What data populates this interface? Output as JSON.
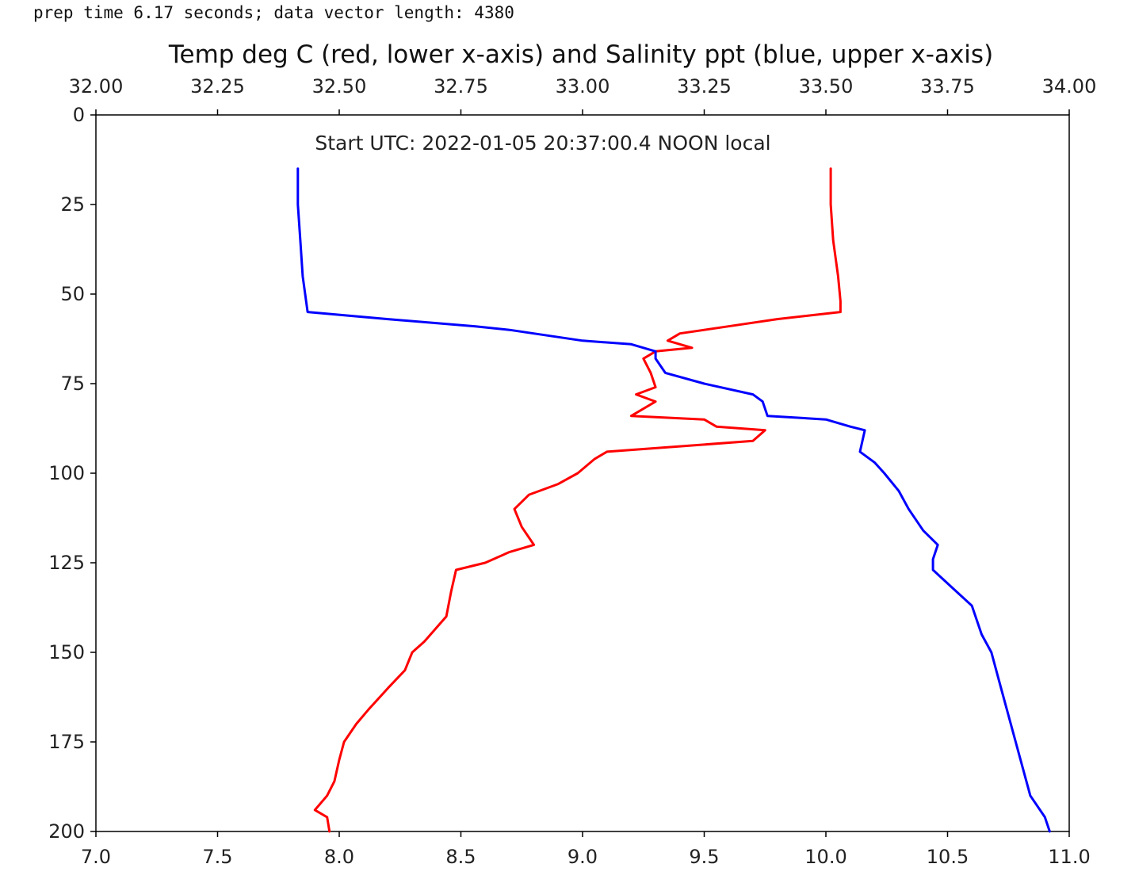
{
  "console": {
    "output_line": "prep time 6.17 seconds; data vector length: 4380"
  },
  "chart_data": {
    "type": "line",
    "title": "Temp deg C (red, lower x-axis) and Salinity ppt (blue, upper x-axis)",
    "annotation": "Start UTC: 2022-01-05 20:37:00.4 NOON local",
    "grid": false,
    "y_axis": {
      "label": "",
      "inverted": true,
      "lim": [
        0,
        200
      ],
      "ticks": [
        0,
        25,
        50,
        75,
        100,
        125,
        150,
        175,
        200
      ],
      "tick_labels": [
        "0",
        "25",
        "50",
        "75",
        "100",
        "125",
        "150",
        "175",
        "200"
      ]
    },
    "x_bottom": {
      "label": "",
      "lim": [
        7.0,
        11.0
      ],
      "ticks": [
        7.0,
        7.5,
        8.0,
        8.5,
        9.0,
        9.5,
        10.0,
        10.5,
        11.0
      ],
      "tick_labels": [
        "7.0",
        "7.5",
        "8.0",
        "8.5",
        "9.0",
        "9.5",
        "10.0",
        "10.5",
        "11.0"
      ]
    },
    "x_top": {
      "label": "",
      "lim": [
        32.0,
        34.0
      ],
      "ticks": [
        32.0,
        32.25,
        32.5,
        32.75,
        33.0,
        33.25,
        33.5,
        33.75,
        34.0
      ],
      "tick_labels": [
        "32.00",
        "32.25",
        "32.50",
        "32.75",
        "33.00",
        "33.25",
        "33.50",
        "33.75",
        "34.00"
      ]
    },
    "series": [
      {
        "axis": "bottom",
        "color": "#ff0000",
        "points": [
          [
            10.02,
            15
          ],
          [
            10.02,
            25
          ],
          [
            10.03,
            35
          ],
          [
            10.05,
            45
          ],
          [
            10.06,
            52
          ],
          [
            10.06,
            55
          ],
          [
            9.8,
            57
          ],
          [
            9.6,
            59
          ],
          [
            9.4,
            61
          ],
          [
            9.35,
            63
          ],
          [
            9.45,
            65
          ],
          [
            9.3,
            66
          ],
          [
            9.25,
            68
          ],
          [
            9.28,
            72
          ],
          [
            9.3,
            76
          ],
          [
            9.22,
            78
          ],
          [
            9.3,
            80
          ],
          [
            9.2,
            84
          ],
          [
            9.5,
            85
          ],
          [
            9.55,
            87
          ],
          [
            9.75,
            88
          ],
          [
            9.7,
            91
          ],
          [
            9.3,
            93
          ],
          [
            9.1,
            94
          ],
          [
            9.05,
            96
          ],
          [
            8.98,
            100
          ],
          [
            8.9,
            103
          ],
          [
            8.78,
            106
          ],
          [
            8.72,
            110
          ],
          [
            8.75,
            115
          ],
          [
            8.8,
            120
          ],
          [
            8.7,
            122
          ],
          [
            8.6,
            125
          ],
          [
            8.48,
            127
          ],
          [
            8.46,
            133
          ],
          [
            8.44,
            140
          ],
          [
            8.35,
            147
          ],
          [
            8.3,
            150
          ],
          [
            8.27,
            155
          ],
          [
            8.2,
            160
          ],
          [
            8.12,
            166
          ],
          [
            8.07,
            170
          ],
          [
            8.02,
            175
          ],
          [
            8.0,
            180
          ],
          [
            7.98,
            186
          ],
          [
            7.95,
            190
          ],
          [
            7.9,
            194
          ],
          [
            7.95,
            196
          ],
          [
            7.96,
            200
          ]
        ]
      },
      {
        "axis": "top",
        "color": "#0000ff",
        "points": [
          [
            32.415,
            15
          ],
          [
            32.415,
            25
          ],
          [
            32.42,
            35
          ],
          [
            32.425,
            45
          ],
          [
            32.43,
            50
          ],
          [
            32.435,
            55
          ],
          [
            32.6,
            57
          ],
          [
            32.78,
            59
          ],
          [
            32.85,
            60
          ],
          [
            33.0,
            63
          ],
          [
            33.1,
            64
          ],
          [
            33.15,
            66
          ],
          [
            33.15,
            68
          ],
          [
            33.17,
            72
          ],
          [
            33.25,
            75
          ],
          [
            33.35,
            78
          ],
          [
            33.37,
            80
          ],
          [
            33.38,
            84
          ],
          [
            33.5,
            85
          ],
          [
            33.55,
            87
          ],
          [
            33.58,
            88
          ],
          [
            33.57,
            94
          ],
          [
            33.6,
            97
          ],
          [
            33.62,
            100
          ],
          [
            33.65,
            105
          ],
          [
            33.67,
            110
          ],
          [
            33.7,
            116
          ],
          [
            33.73,
            120
          ],
          [
            33.72,
            124
          ],
          [
            33.72,
            127
          ],
          [
            33.76,
            132
          ],
          [
            33.8,
            137
          ],
          [
            33.82,
            145
          ],
          [
            33.84,
            150
          ],
          [
            33.86,
            160
          ],
          [
            33.88,
            170
          ],
          [
            33.9,
            180
          ],
          [
            33.92,
            190
          ],
          [
            33.95,
            196
          ],
          [
            33.96,
            200
          ]
        ]
      }
    ]
  }
}
